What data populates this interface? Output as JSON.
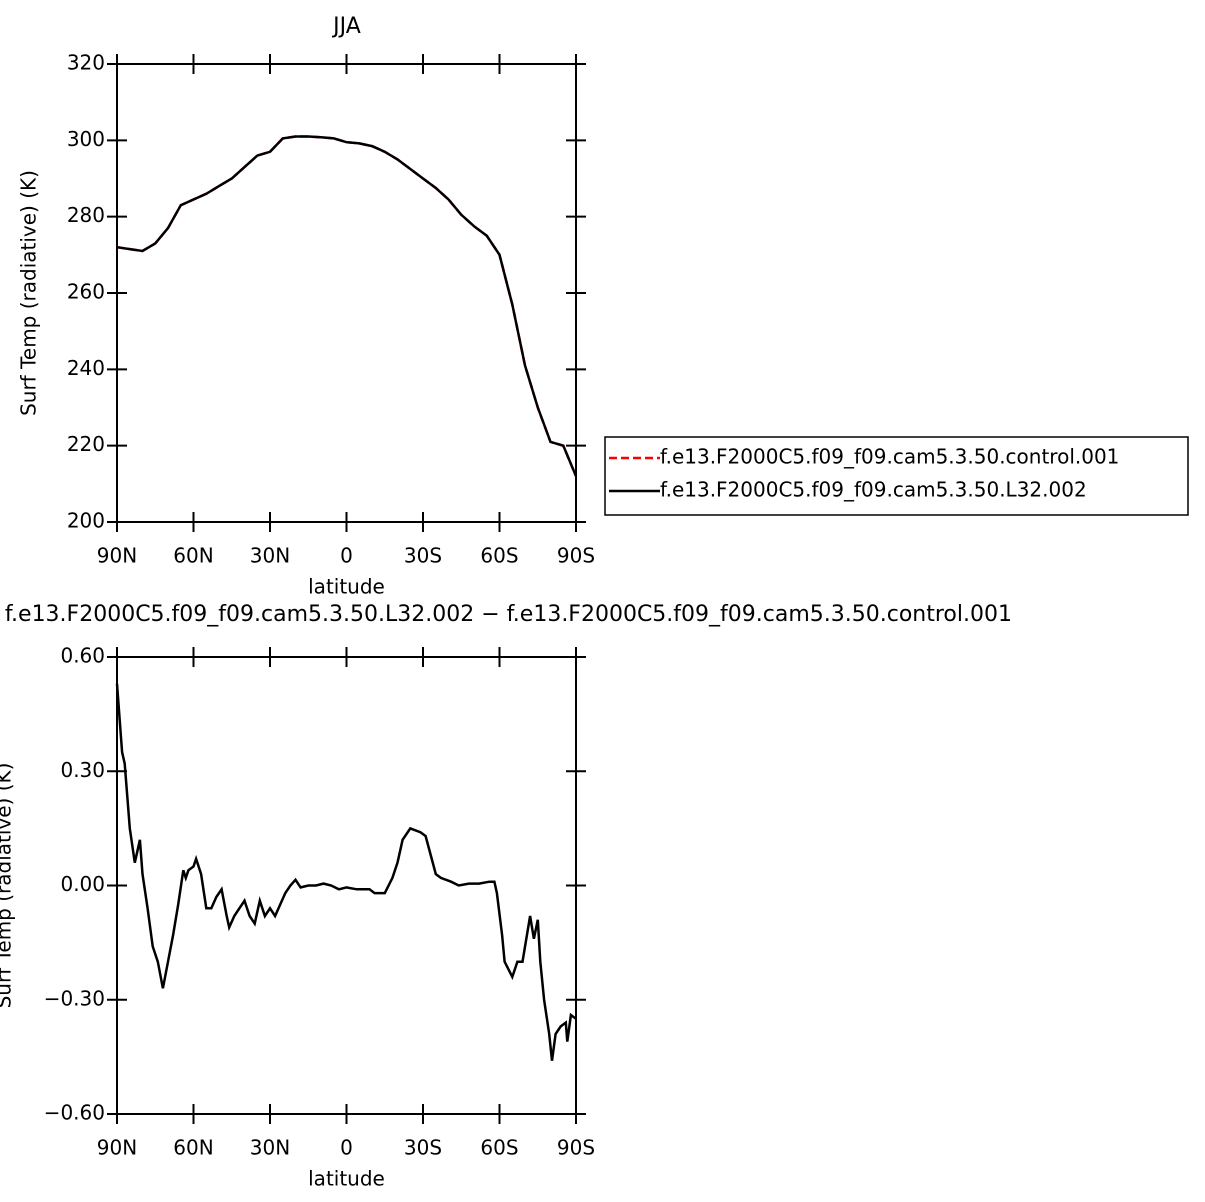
{
  "chart_data": [
    {
      "type": "line",
      "title": "JJA",
      "y_label": "Surf Temp (radiative) (K)",
      "x_label": "latitude",
      "x": [
        90,
        85,
        80,
        75,
        70,
        65,
        60,
        55,
        50,
        45,
        40,
        35,
        30,
        25,
        20,
        15,
        10,
        5,
        0,
        -5,
        -10,
        -15,
        -20,
        -25,
        -30,
        -35,
        -40,
        -45,
        -50,
        -55,
        -60,
        -65,
        -70,
        -75,
        -80,
        -85,
        -90
      ],
      "series": [
        {
          "name": "f.e13.F2000C5.f09_f09.cam5.3.50.control.001",
          "color": "#ff0000",
          "dashed": true,
          "values": [
            272,
            271.5,
            271,
            273,
            277,
            283,
            284.5,
            286,
            288,
            290,
            293,
            296,
            297,
            300.5,
            301,
            301,
            300.8,
            300.5,
            299.5,
            299.2,
            298.5,
            297,
            295,
            292.5,
            290,
            287.5,
            284.5,
            280.5,
            277.5,
            275,
            270,
            257,
            241,
            230,
            221,
            220,
            212
          ]
        },
        {
          "name": "f.e13.F2000C5.f09_f09.cam5.3.50.L32.002",
          "color": "#000000",
          "dashed": false,
          "values": [
            272,
            271.5,
            271,
            273,
            277,
            283,
            284.5,
            286,
            288,
            290,
            293,
            296,
            297,
            300.5,
            301,
            301,
            300.8,
            300.5,
            299.5,
            299.2,
            298.5,
            297,
            295,
            292.5,
            290,
            287.5,
            284.5,
            280.5,
            277.5,
            275,
            270,
            257,
            241,
            230,
            221,
            220,
            212
          ]
        }
      ],
      "xlim": [
        90,
        -90
      ],
      "xticks": [
        {
          "value": 90,
          "label": "90N"
        },
        {
          "value": 60,
          "label": "60N"
        },
        {
          "value": 30,
          "label": "30N"
        },
        0,
        {
          "value": -30,
          "label": "30S"
        },
        {
          "value": -60,
          "label": "60S"
        },
        {
          "value": -90,
          "label": "90S"
        }
      ],
      "ylim": [
        200,
        320
      ],
      "yticks": [
        200,
        220,
        240,
        260,
        280,
        300,
        320
      ],
      "legend": "right"
    },
    {
      "type": "line",
      "title": "f.e13.F2000C5.f09_f09.cam5.3.50.L32.002 − f.e13.F2000C5.f09_f09.cam5.3.50.control.001",
      "y_label": "Surf Temp (radiative) (K)",
      "x_label": "latitude",
      "x": [
        90,
        88,
        87,
        85,
        83,
        81,
        80,
        78,
        76,
        74,
        72,
        70,
        68,
        66,
        64,
        63,
        62,
        60,
        59,
        57,
        55,
        53,
        51,
        49,
        47,
        46,
        44,
        42,
        40,
        38,
        36,
        34,
        32,
        30,
        28,
        26,
        24,
        22,
        20,
        18,
        15,
        12,
        9,
        6,
        3,
        0,
        -4,
        -9,
        -11,
        -15,
        -18,
        -20,
        -22,
        -25,
        -29,
        -31,
        -33,
        -35,
        -37,
        -41,
        -44,
        -48,
        -52,
        -56,
        -58,
        -59,
        -61,
        -62,
        -65,
        -67,
        -69,
        -72,
        -73.5,
        -75,
        -76,
        -77.5,
        -79.5,
        -80.6,
        -82,
        -84,
        -86,
        -86.6,
        -88,
        -90
      ],
      "series": [
        {
          "name": "f.e13.F2000C5.f09_f09.cam5.3.50.L32.002 − f.e13.F2000C5.f09_f09.cam5.3.50.control.001",
          "color": "#000000",
          "dashed": false,
          "values": [
            0.53,
            0.35,
            0.32,
            0.15,
            0.06,
            0.12,
            0.03,
            -0.06,
            -0.16,
            -0.2,
            -0.27,
            -0.2,
            -0.13,
            -0.05,
            0.04,
            0.02,
            0.04,
            0.05,
            0.07,
            0.03,
            -0.06,
            -0.06,
            -0.03,
            -0.01,
            -0.08,
            -0.11,
            -0.08,
            -0.06,
            -0.04,
            -0.08,
            -0.1,
            -0.04,
            -0.08,
            -0.06,
            -0.08,
            -0.05,
            -0.02,
            0.0,
            0.015,
            -0.005,
            0.0,
            0.0,
            0.005,
            0.0,
            -0.01,
            -0.005,
            -0.01,
            -0.01,
            -0.02,
            -0.02,
            0.02,
            0.06,
            0.12,
            0.15,
            0.14,
            0.13,
            0.08,
            0.03,
            0.02,
            0.01,
            0.0,
            0.005,
            0.005,
            0.01,
            0.01,
            -0.02,
            -0.13,
            -0.2,
            -0.24,
            -0.2,
            -0.2,
            -0.08,
            -0.14,
            -0.09,
            -0.2,
            -0.3,
            -0.39,
            -0.46,
            -0.39,
            -0.37,
            -0.36,
            -0.41,
            -0.34,
            -0.35
          ]
        }
      ],
      "xlim": [
        90,
        -90
      ],
      "xticks": [
        {
          "value": 90,
          "label": "90N"
        },
        {
          "value": 60,
          "label": "60N"
        },
        {
          "value": 30,
          "label": "30N"
        },
        0,
        {
          "value": -30,
          "label": "30S"
        },
        {
          "value": -60,
          "label": "60S"
        },
        {
          "value": -90,
          "label": "90S"
        }
      ],
      "ylim": [
        -0.6,
        0.6
      ],
      "yticks": [
        {
          "value": -0.6,
          "label": "−0.60"
        },
        {
          "value": -0.3,
          "label": "−0.30"
        },
        {
          "value": 0,
          "label": "0.00"
        },
        {
          "value": 0.3,
          "label": "0.30"
        },
        {
          "value": 0.6,
          "label": "0.60"
        }
      ]
    }
  ]
}
